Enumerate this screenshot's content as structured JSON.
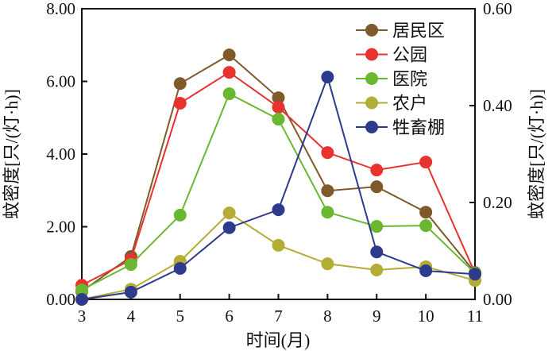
{
  "chart_data": {
    "type": "line",
    "title": "",
    "xlabel": "时间(月)",
    "ylabel_left": "蚊密度[只/(灯·h)]",
    "ylabel_right": "蚊密度[只/(灯·h)]",
    "x": [
      3,
      4,
      5,
      6,
      7,
      8,
      9,
      10,
      11
    ],
    "xlim": [
      3,
      11
    ],
    "ylim_left": [
      0,
      8
    ],
    "ylim_right": [
      0,
      0.6
    ],
    "x_ticks": [
      "3",
      "4",
      "5",
      "6",
      "7",
      "8",
      "9",
      "10",
      "11"
    ],
    "y_ticks_left": [
      "0.00",
      "2.00",
      "4.00",
      "6.00",
      "8.00"
    ],
    "y_ticks_right": [
      "0.00",
      "0.20",
      "0.40",
      "0.60"
    ],
    "grid": false,
    "legend_position": "top-right",
    "series": [
      {
        "name": "居民区",
        "axis": "left",
        "color": "#7f5a2a",
        "values": [
          0.22,
          1.18,
          5.94,
          6.73,
          5.55,
          2.99,
          3.1,
          2.4,
          0.74
        ]
      },
      {
        "name": "公园",
        "axis": "left",
        "color": "#e8322e",
        "values": [
          0.39,
          1.09,
          5.4,
          6.25,
          5.29,
          4.04,
          3.56,
          3.78,
          0.72
        ]
      },
      {
        "name": "医院",
        "axis": "left",
        "color": "#6ab832",
        "values": [
          0.26,
          0.96,
          2.32,
          5.66,
          4.96,
          2.4,
          2.01,
          2.03,
          0.72
        ]
      },
      {
        "name": "农户",
        "axis": "left",
        "color": "#b4ad35",
        "values": [
          0.0,
          0.28,
          1.05,
          2.38,
          1.49,
          0.98,
          0.81,
          0.9,
          0.52
        ]
      },
      {
        "name": "牲畜棚",
        "axis": "right",
        "color": "#2e3a8c",
        "values": [
          0.0,
          0.015,
          0.064,
          0.148,
          0.185,
          0.459,
          0.098,
          0.059,
          0.052
        ]
      }
    ]
  }
}
